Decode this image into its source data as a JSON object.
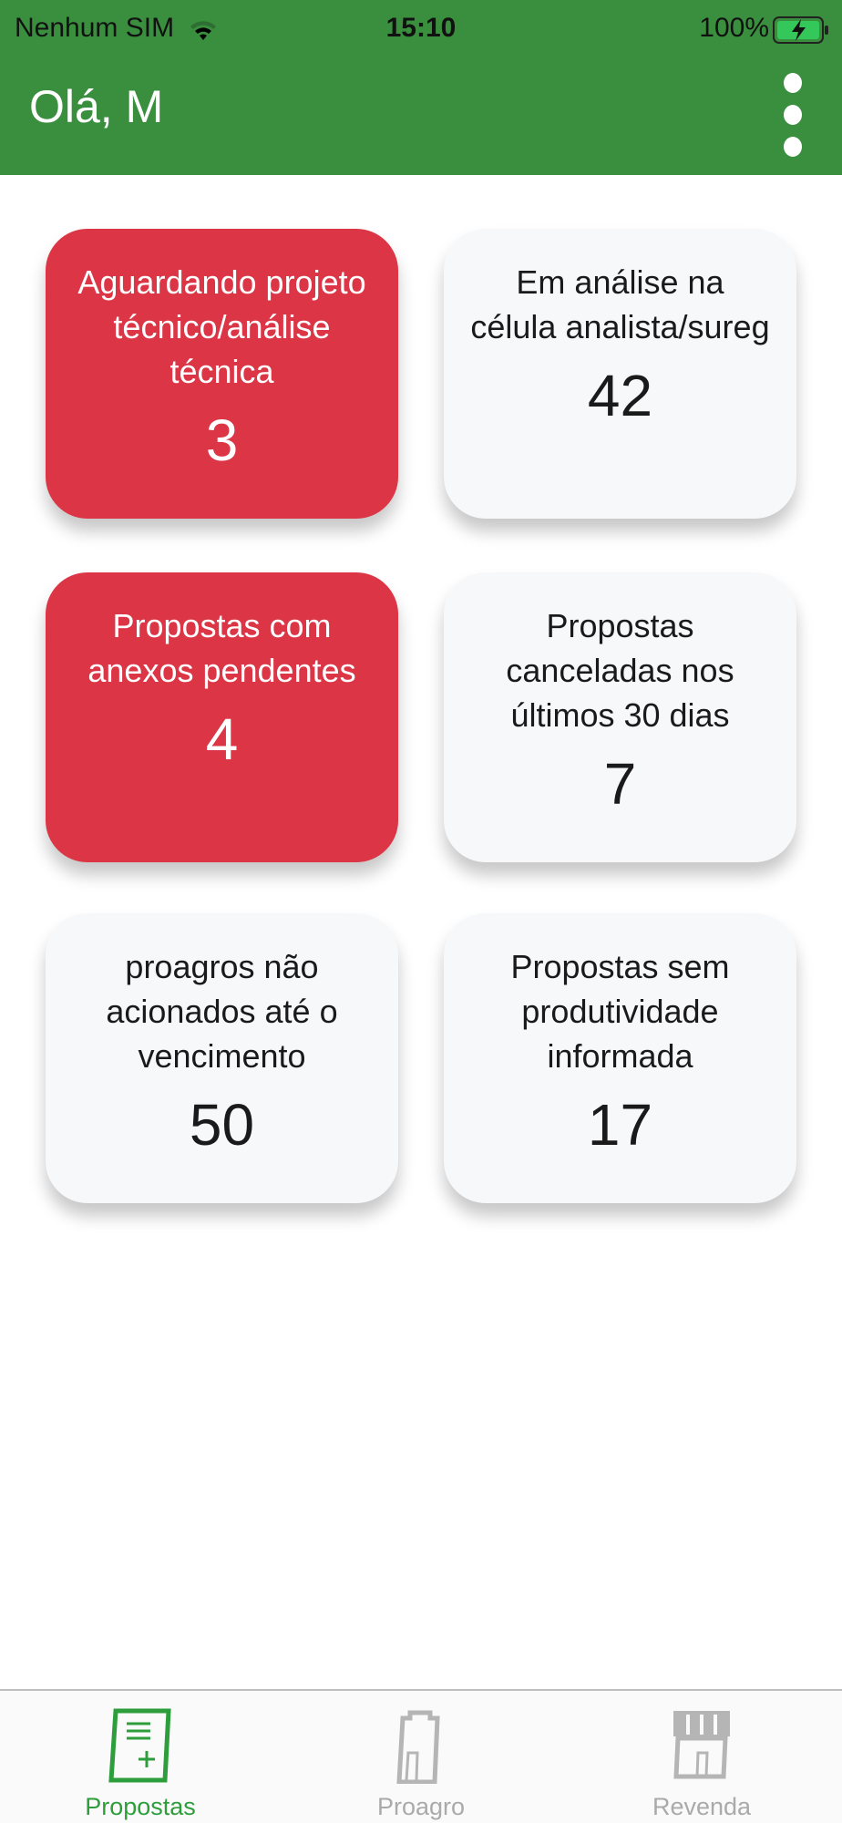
{
  "status_bar": {
    "carrier": "Nenhum SIM",
    "time": "15:10",
    "battery": "100%"
  },
  "header": {
    "greeting": "Olá, M",
    "menu_icon": "more-vertical-icon"
  },
  "colors": {
    "header": "#3a8f3e",
    "alert": "#dc3545",
    "active_tab": "#2e9e3c"
  },
  "cards": [
    {
      "title": "Aguardando projeto técnico/análise técnica",
      "count": "3",
      "alert": true
    },
    {
      "title": "Em análise na célula analista/sureg",
      "count": "42",
      "alert": false
    },
    {
      "title": "Propostas com anexos pendentes",
      "count": "4",
      "alert": true
    },
    {
      "title": "Propostas canceladas nos últimos 30 dias",
      "count": "7",
      "alert": false
    },
    {
      "title": "proagros não acionados até o vencimento",
      "count": "50",
      "alert": false
    },
    {
      "title": "Propostas sem produtividade informada",
      "count": "17",
      "alert": false
    }
  ],
  "tabs": [
    {
      "label": "Propostas",
      "icon": "document-add-icon",
      "active": true
    },
    {
      "label": "Proagro",
      "icon": "building-icon",
      "active": false
    },
    {
      "label": "Revenda",
      "icon": "store-icon",
      "active": false
    }
  ]
}
